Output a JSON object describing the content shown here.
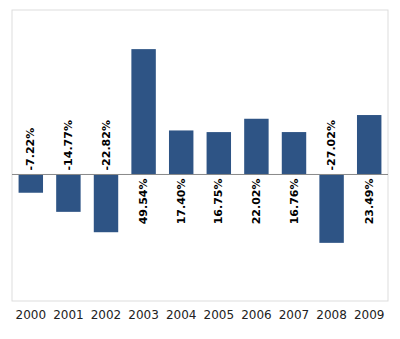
{
  "chart_data": {
    "type": "bar",
    "categories": [
      "2000",
      "2001",
      "2002",
      "2003",
      "2004",
      "2005",
      "2006",
      "2007",
      "2008",
      "2009"
    ],
    "values": [
      -7.22,
      -14.77,
      -22.82,
      49.54,
      17.4,
      16.75,
      22.02,
      16.76,
      -27.02,
      23.49
    ],
    "value_labels": [
      "-7.22%",
      "-14.77%",
      "-22.82%",
      "49.54%",
      "17.40%",
      "16.75%",
      "22.02%",
      "16.76%",
      "-27.02%",
      "23.49%"
    ],
    "data_labels": true,
    "color": "#2e5485",
    "ylim": [
      -50,
      65
    ],
    "tick_labels": "x",
    "grid": false
  }
}
